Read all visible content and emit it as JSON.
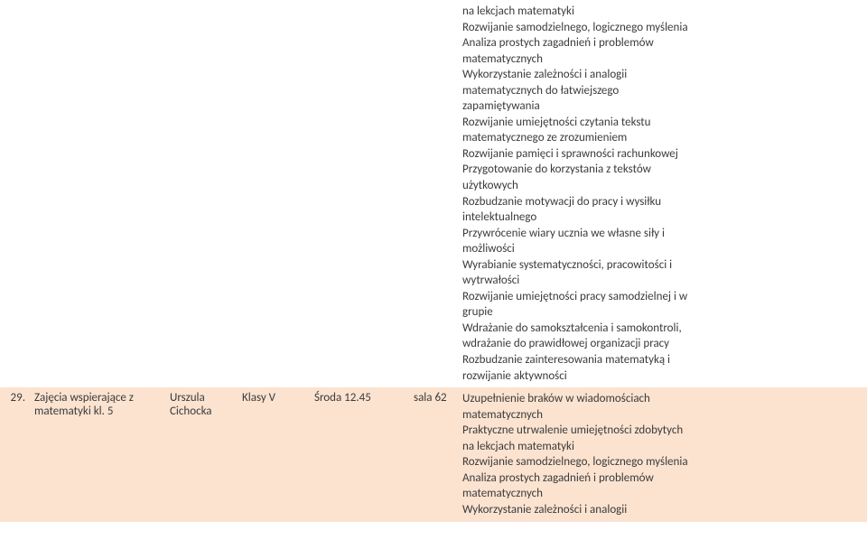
{
  "row_top": {
    "desc": [
      "na lekcjach matematyki",
      "Rozwijanie samodzielnego, logicznego myślenia",
      "Analiza prostych zagadnień i problemów",
      "matematycznych",
      "Wykorzystanie zależności i analogii",
      "matematycznych do łatwiejszego",
      "zapamiętywania",
      "Rozwijanie umiejętności czytania tekstu",
      "matematycznego ze zrozumieniem",
      "Rozwijanie pamięci i sprawności rachunkowej",
      "Przygotowanie do korzystania z tekstów",
      "użytkowych",
      "Rozbudzanie motywacji do pracy i wysiłku",
      "intelektualnego",
      "Przywrócenie wiary ucznia we własne siły i",
      "możliwości",
      "Wyrabianie systematyczności, pracowitości i",
      "wytrwałości",
      "Rozwijanie umiejętności pracy samodzielnej i w",
      "grupie",
      "Wdrażanie do samokształcenia i samokontroli,",
      "wdrażanie do prawidłowej organizacji pracy",
      "Rozbudzanie zainteresowania matematyką i",
      "rozwijanie aktywności"
    ]
  },
  "row_bottom": {
    "num": "29.",
    "name_line1": "Zajęcia wspierające z",
    "name_line2": "matematyki kl. 5",
    "teacher_line1": "Urszula",
    "teacher_line2": "Cichocka",
    "klass": "Klasy V",
    "time": "Środa 12.45",
    "room": "sala 62",
    "desc": [
      "Uzupełnienie braków w wiadomościach",
      "matematycznych",
      "Praktyczne utrwalenie umiejętności zdobytych",
      "na lekcjach matematyki",
      "Rozwijanie samodzielnego, logicznego myślenia",
      "Analiza prostych zagadnień i problemów",
      "matematycznych",
      "Wykorzystanie zależności i analogii"
    ]
  },
  "colors": {
    "row_bottom_bg": "#fbe3d0",
    "text": "#3b3b3b"
  }
}
